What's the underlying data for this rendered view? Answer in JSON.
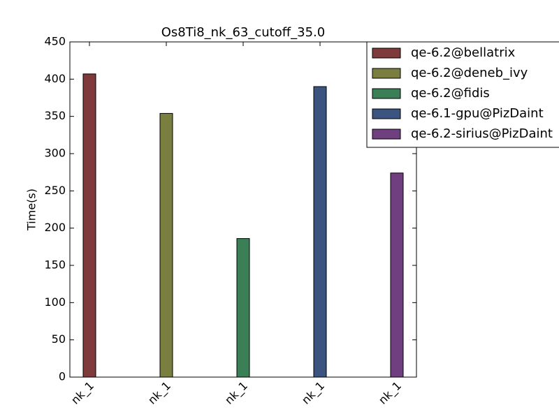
{
  "chart_data": {
    "type": "bar",
    "title": "Os8Ti8_nk_63_cutoff_35.0",
    "y_label": "Time(s)",
    "categories": [
      "nk_1",
      "nk_1",
      "nk_1",
      "nk_1",
      "nk_1"
    ],
    "series": [
      {
        "name": "qe-6.2@bellatrix",
        "color": "#7f3b3b",
        "values": [
          407,
          null,
          null,
          null,
          null
        ]
      },
      {
        "name": "qe-6.2@deneb_ivy",
        "color": "#7a7f3f",
        "values": [
          null,
          354,
          null,
          null,
          null
        ]
      },
      {
        "name": "qe-6.2@fidis",
        "color": "#3b7f56",
        "values": [
          null,
          null,
          186,
          null,
          null
        ]
      },
      {
        "name": "qe-6.1-gpu@PizDaint",
        "color": "#3b5580",
        "values": [
          null,
          null,
          null,
          390,
          null
        ]
      },
      {
        "name": "qe-6.2-sirius@PizDaint",
        "color": "#703f80",
        "values": [
          null,
          null,
          null,
          null,
          274
        ]
      }
    ],
    "ylim": [
      0,
      450
    ],
    "yticks": [
      0,
      50,
      100,
      150,
      200,
      250,
      300,
      350,
      400,
      450
    ],
    "grid": false,
    "legend": "upper right"
  }
}
